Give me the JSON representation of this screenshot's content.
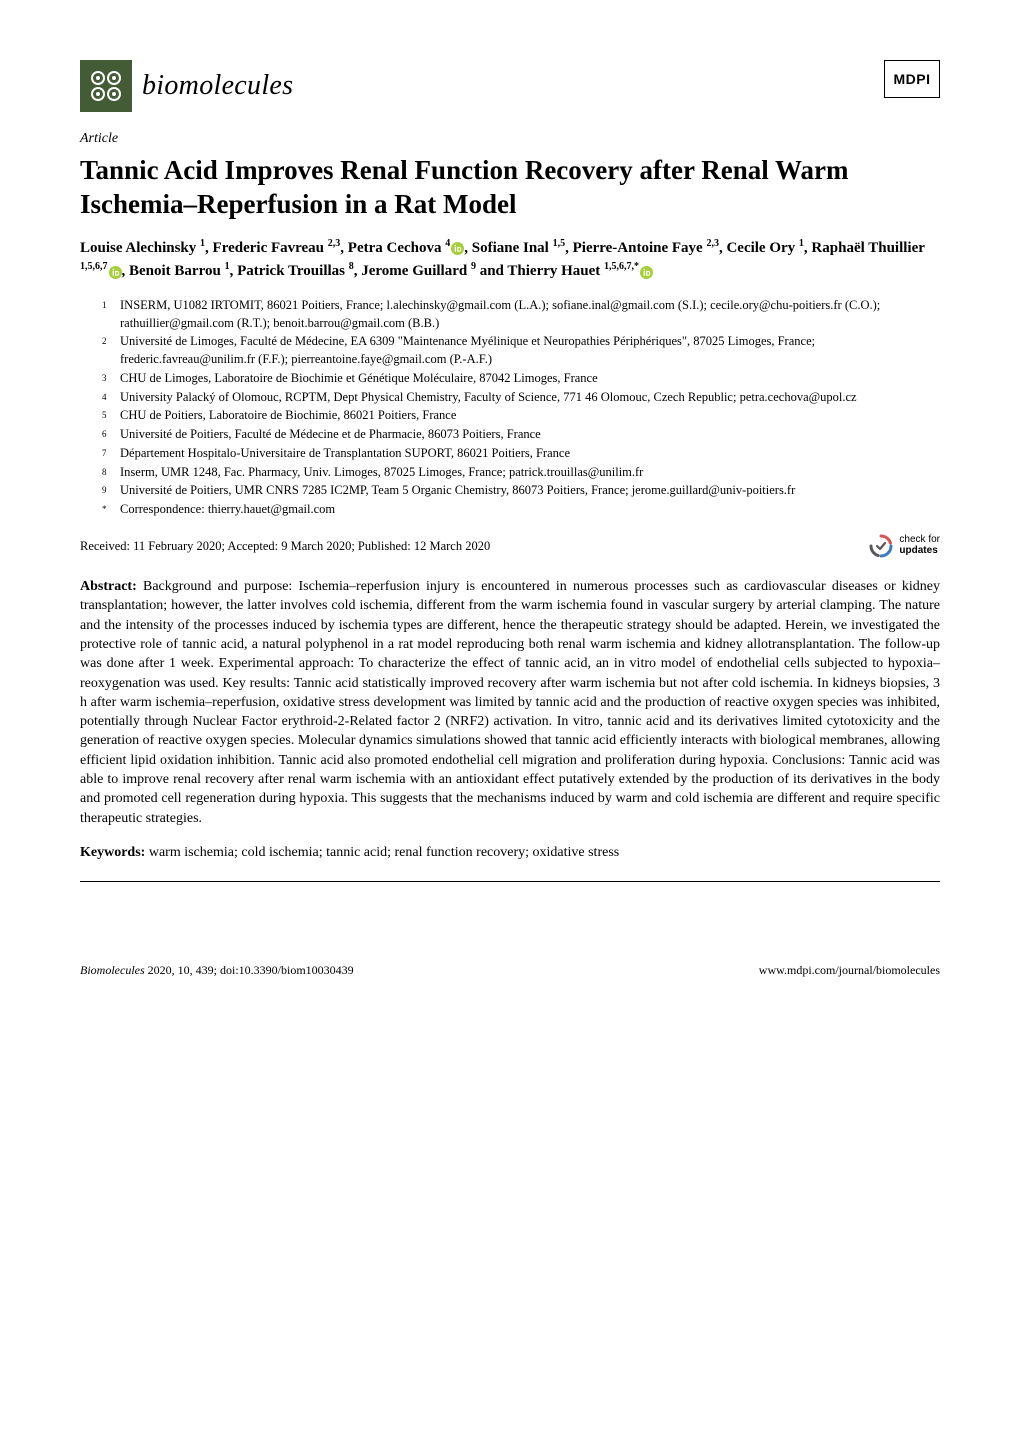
{
  "journal": {
    "name": "biomolecules",
    "logo_colors": {
      "bg": "#435c36",
      "fg": "#ffffff"
    }
  },
  "publisher": {
    "name": "MDPI",
    "logo_border": "#000000"
  },
  "article_type": "Article",
  "title": "Tannic Acid Improves Renal Function Recovery after Renal Warm Ischemia–Reperfusion in a Rat Model",
  "authors_html_parts": [
    {
      "name": "Louise Alechinsky",
      "sup": "1"
    },
    {
      "name": "Frederic Favreau",
      "sup": "2,3"
    },
    {
      "name": "Petra Cechova",
      "sup": "4",
      "orcid": true
    },
    {
      "name": "Sofiane Inal",
      "sup": "1,5"
    },
    {
      "name": "Pierre-Antoine Faye",
      "sup": "2,3"
    },
    {
      "name": "Cecile Ory",
      "sup": "1"
    },
    {
      "name": "Raphaël Thuillier",
      "sup": "1,5,6,7",
      "orcid": true
    },
    {
      "name": "Benoit Barrou",
      "sup": "1"
    },
    {
      "name": "Patrick Trouillas",
      "sup": "8"
    },
    {
      "name": "Jerome Guillard",
      "sup": "9"
    },
    {
      "name": "Thierry Hauet",
      "sup": "1,5,6,7,*",
      "orcid": true,
      "last": true
    }
  ],
  "connector": " and ",
  "orcid_color": "#a6ce39",
  "affiliations": [
    {
      "num": "1",
      "text": "INSERM, U1082 IRTOMIT, 86021 Poitiers, France; l.alechinsky@gmail.com (L.A.); sofiane.inal@gmail.com (S.I.); cecile.ory@chu-poitiers.fr (C.O.); rathuillier@gmail.com (R.T.); benoit.barrou@gmail.com (B.B.)"
    },
    {
      "num": "2",
      "text": "Université de Limoges, Faculté de Médecine, EA 6309 \"Maintenance Myélinique et Neuropathies Périphériques\", 87025 Limoges, France; frederic.favreau@unilim.fr (F.F.); pierreantoine.faye@gmail.com (P.-A.F.)"
    },
    {
      "num": "3",
      "text": "CHU de Limoges, Laboratoire de Biochimie et Génétique Moléculaire, 87042 Limoges, France"
    },
    {
      "num": "4",
      "text": "University Palacký of Olomouc, RCPTM, Dept Physical Chemistry, Faculty of Science, 771 46 Olomouc, Czech Republic; petra.cechova@upol.cz"
    },
    {
      "num": "5",
      "text": "CHU de Poitiers, Laboratoire de Biochimie, 86021 Poitiers, France"
    },
    {
      "num": "6",
      "text": "Université de Poitiers, Faculté de Médecine et de Pharmacie, 86073 Poitiers, France"
    },
    {
      "num": "7",
      "text": "Département Hospitalo-Universitaire de Transplantation SUPORT, 86021 Poitiers, France"
    },
    {
      "num": "8",
      "text": "Inserm, UMR 1248, Fac. Pharmacy, Univ. Limoges, 87025 Limoges, France; patrick.trouillas@unilim.fr"
    },
    {
      "num": "9",
      "text": "Université de Poitiers, UMR CNRS 7285 IC2MP, Team 5 Organic Chemistry, 86073 Poitiers, France; jerome.guillard@univ-poitiers.fr"
    },
    {
      "num": "*",
      "text": "Correspondence: thierry.hauet@gmail.com"
    }
  ],
  "dates": "Received: 11 February 2020; Accepted: 9 March 2020; Published: 12 March 2020",
  "updates_badge": {
    "line1": "check for",
    "line2": "updates",
    "colors": {
      "arc1": "#d9534f",
      "arc2": "#3b7bbf",
      "arc3": "#58585a"
    }
  },
  "abstract": {
    "label": "Abstract:",
    "text": "Background and purpose: Ischemia–reperfusion injury is encountered in numerous processes such as cardiovascular diseases or kidney transplantation; however, the latter involves cold ischemia, different from the warm ischemia found in vascular surgery by arterial clamping. The nature and the intensity of the processes induced by ischemia types are different, hence the therapeutic strategy should be adapted. Herein, we investigated the protective role of tannic acid, a natural polyphenol in a rat model reproducing both renal warm ischemia and kidney allotransplantation. The follow-up was done after 1 week. Experimental approach: To characterize the effect of tannic acid, an in vitro model of endothelial cells subjected to hypoxia–reoxygenation was used. Key results: Tannic acid statistically improved recovery after warm ischemia but not after cold ischemia. In kidneys biopsies, 3 h after warm ischemia–reperfusion, oxidative stress development was limited by tannic acid and the production of reactive oxygen species was inhibited, potentially through Nuclear Factor erythroid-2-Related factor 2 (NRF2) activation. In vitro, tannic acid and its derivatives limited cytotoxicity and the generation of reactive oxygen species. Molecular dynamics simulations showed that tannic acid efficiently interacts with biological membranes, allowing efficient lipid oxidation inhibition. Tannic acid also promoted endothelial cell migration and proliferation during hypoxia. Conclusions: Tannic acid was able to improve renal recovery after renal warm ischemia with an antioxidant effect putatively extended by the production of its derivatives in the body and promoted cell regeneration during hypoxia. This suggests that the mechanisms induced by warm and cold ischemia are different and require specific therapeutic strategies."
  },
  "keywords": {
    "label": "Keywords:",
    "text": "warm ischemia; cold ischemia; tannic acid; renal function recovery; oxidative stress"
  },
  "footer": {
    "left_journal": "Biomolecules",
    "left_rest": " 2020, 10, 439; doi:10.3390/biom10030439",
    "right": "www.mdpi.com/journal/biomolecules"
  }
}
